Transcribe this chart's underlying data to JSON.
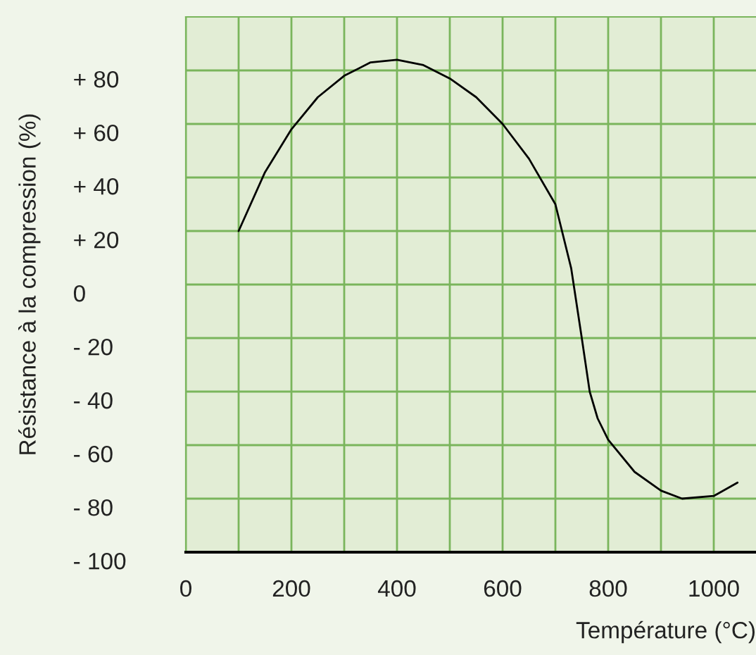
{
  "chart_data": {
    "type": "line",
    "xlabel": "Température (°C)",
    "ylabel": "Résistance à la compression (%)",
    "x": [
      100,
      150,
      200,
      250,
      300,
      350,
      400,
      450,
      500,
      550,
      600,
      650,
      700,
      730,
      750,
      765,
      780,
      800,
      850,
      900,
      940,
      1000,
      1045
    ],
    "series": [
      {
        "color": "#000000",
        "values": [
          20,
          42,
          58,
          70,
          78,
          83,
          84,
          82,
          77,
          70,
          60,
          47,
          30,
          6,
          -20,
          -40,
          -50,
          -58,
          -70,
          -77,
          -80,
          -79,
          -74
        ]
      }
    ],
    "xlim": [
      0,
      1080
    ],
    "xticks": [
      0,
      200,
      400,
      600,
      800,
      1000
    ],
    "ylim": [
      -100,
      100
    ],
    "yticks": [
      {
        "value": 80,
        "label": "+ 80"
      },
      {
        "value": 60,
        "label": "+ 60"
      },
      {
        "value": 40,
        "label": "+ 40"
      },
      {
        "value": 20,
        "label": "+ 20"
      },
      0,
      {
        "value": -20,
        "label": "- 20"
      },
      {
        "value": -40,
        "label": "- 40"
      },
      {
        "value": -60,
        "label": "- 60"
      },
      {
        "value": -80,
        "label": "- 80"
      },
      {
        "value": -100,
        "label": "- 100"
      }
    ],
    "grid": true,
    "marker": "none",
    "line_style": "solid"
  }
}
